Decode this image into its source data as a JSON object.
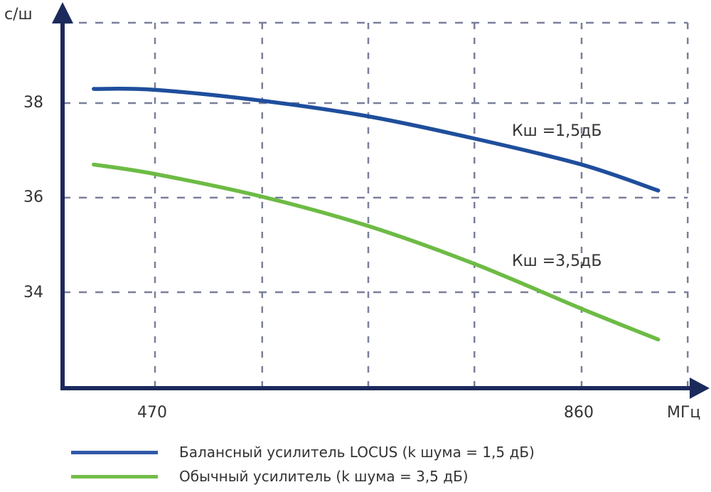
{
  "chart_data": {
    "type": "line",
    "title": "",
    "xlabel": "МГц",
    "ylabel": "с/ш",
    "xlim": [
      360,
      1010
    ],
    "ylim": [
      32,
      39.7
    ],
    "grid": true,
    "x_ticks": [
      {
        "label": "470",
        "value": 470
      },
      {
        "label": "860",
        "value": 860
      }
    ],
    "y_ticks": [
      {
        "label": "38",
        "value": 38
      },
      {
        "label": "36",
        "value": 36
      },
      {
        "label": "34",
        "value": 34
      }
    ],
    "x_grid_values": [
      470,
      568,
      665,
      762,
      860,
      957
    ],
    "y_grid_values": [
      34,
      36,
      38,
      39.7
    ],
    "series": [
      {
        "name": "Балансный усилитель LOCUS (k шума = 1,5 дБ)",
        "color": "#1f4e9c",
        "annotation": "Кш =1,5дБ",
        "x": [
          414,
          470,
          568,
          665,
          762,
          860,
          930
        ],
        "y": [
          38.3,
          38.28,
          38.05,
          37.72,
          37.25,
          36.7,
          36.15
        ]
      },
      {
        "name": "Обычный усилитель (k шума = 3,5 дБ)",
        "color": "#6dbb45",
        "annotation": "Кш =3,5дБ",
        "x": [
          414,
          470,
          568,
          665,
          762,
          860,
          930
        ],
        "y": [
          36.7,
          36.5,
          36.02,
          35.4,
          34.6,
          33.65,
          33.0
        ]
      }
    ],
    "legend_position": "bottom-left"
  },
  "labels": {
    "y_axis_unit": "с/ш",
    "x_axis_unit": "МГц",
    "y38": "38",
    "y36": "36",
    "y34": "34",
    "x470": "470",
    "x860": "860",
    "annotation_blue": "Кш =1,5дБ",
    "annotation_green": "Кш =3,5дБ"
  },
  "legend": [
    {
      "label": "Балансный усилитель LOCUS (k шума = 1,5 дБ)",
      "color": "#1f4e9c"
    },
    {
      "label": "Обычный усилитель (k шума = 3,5 дБ)",
      "color": "#6dbb45"
    }
  ],
  "colors": {
    "axis": "#1b2a5c",
    "grid": "#7a7f9a"
  }
}
